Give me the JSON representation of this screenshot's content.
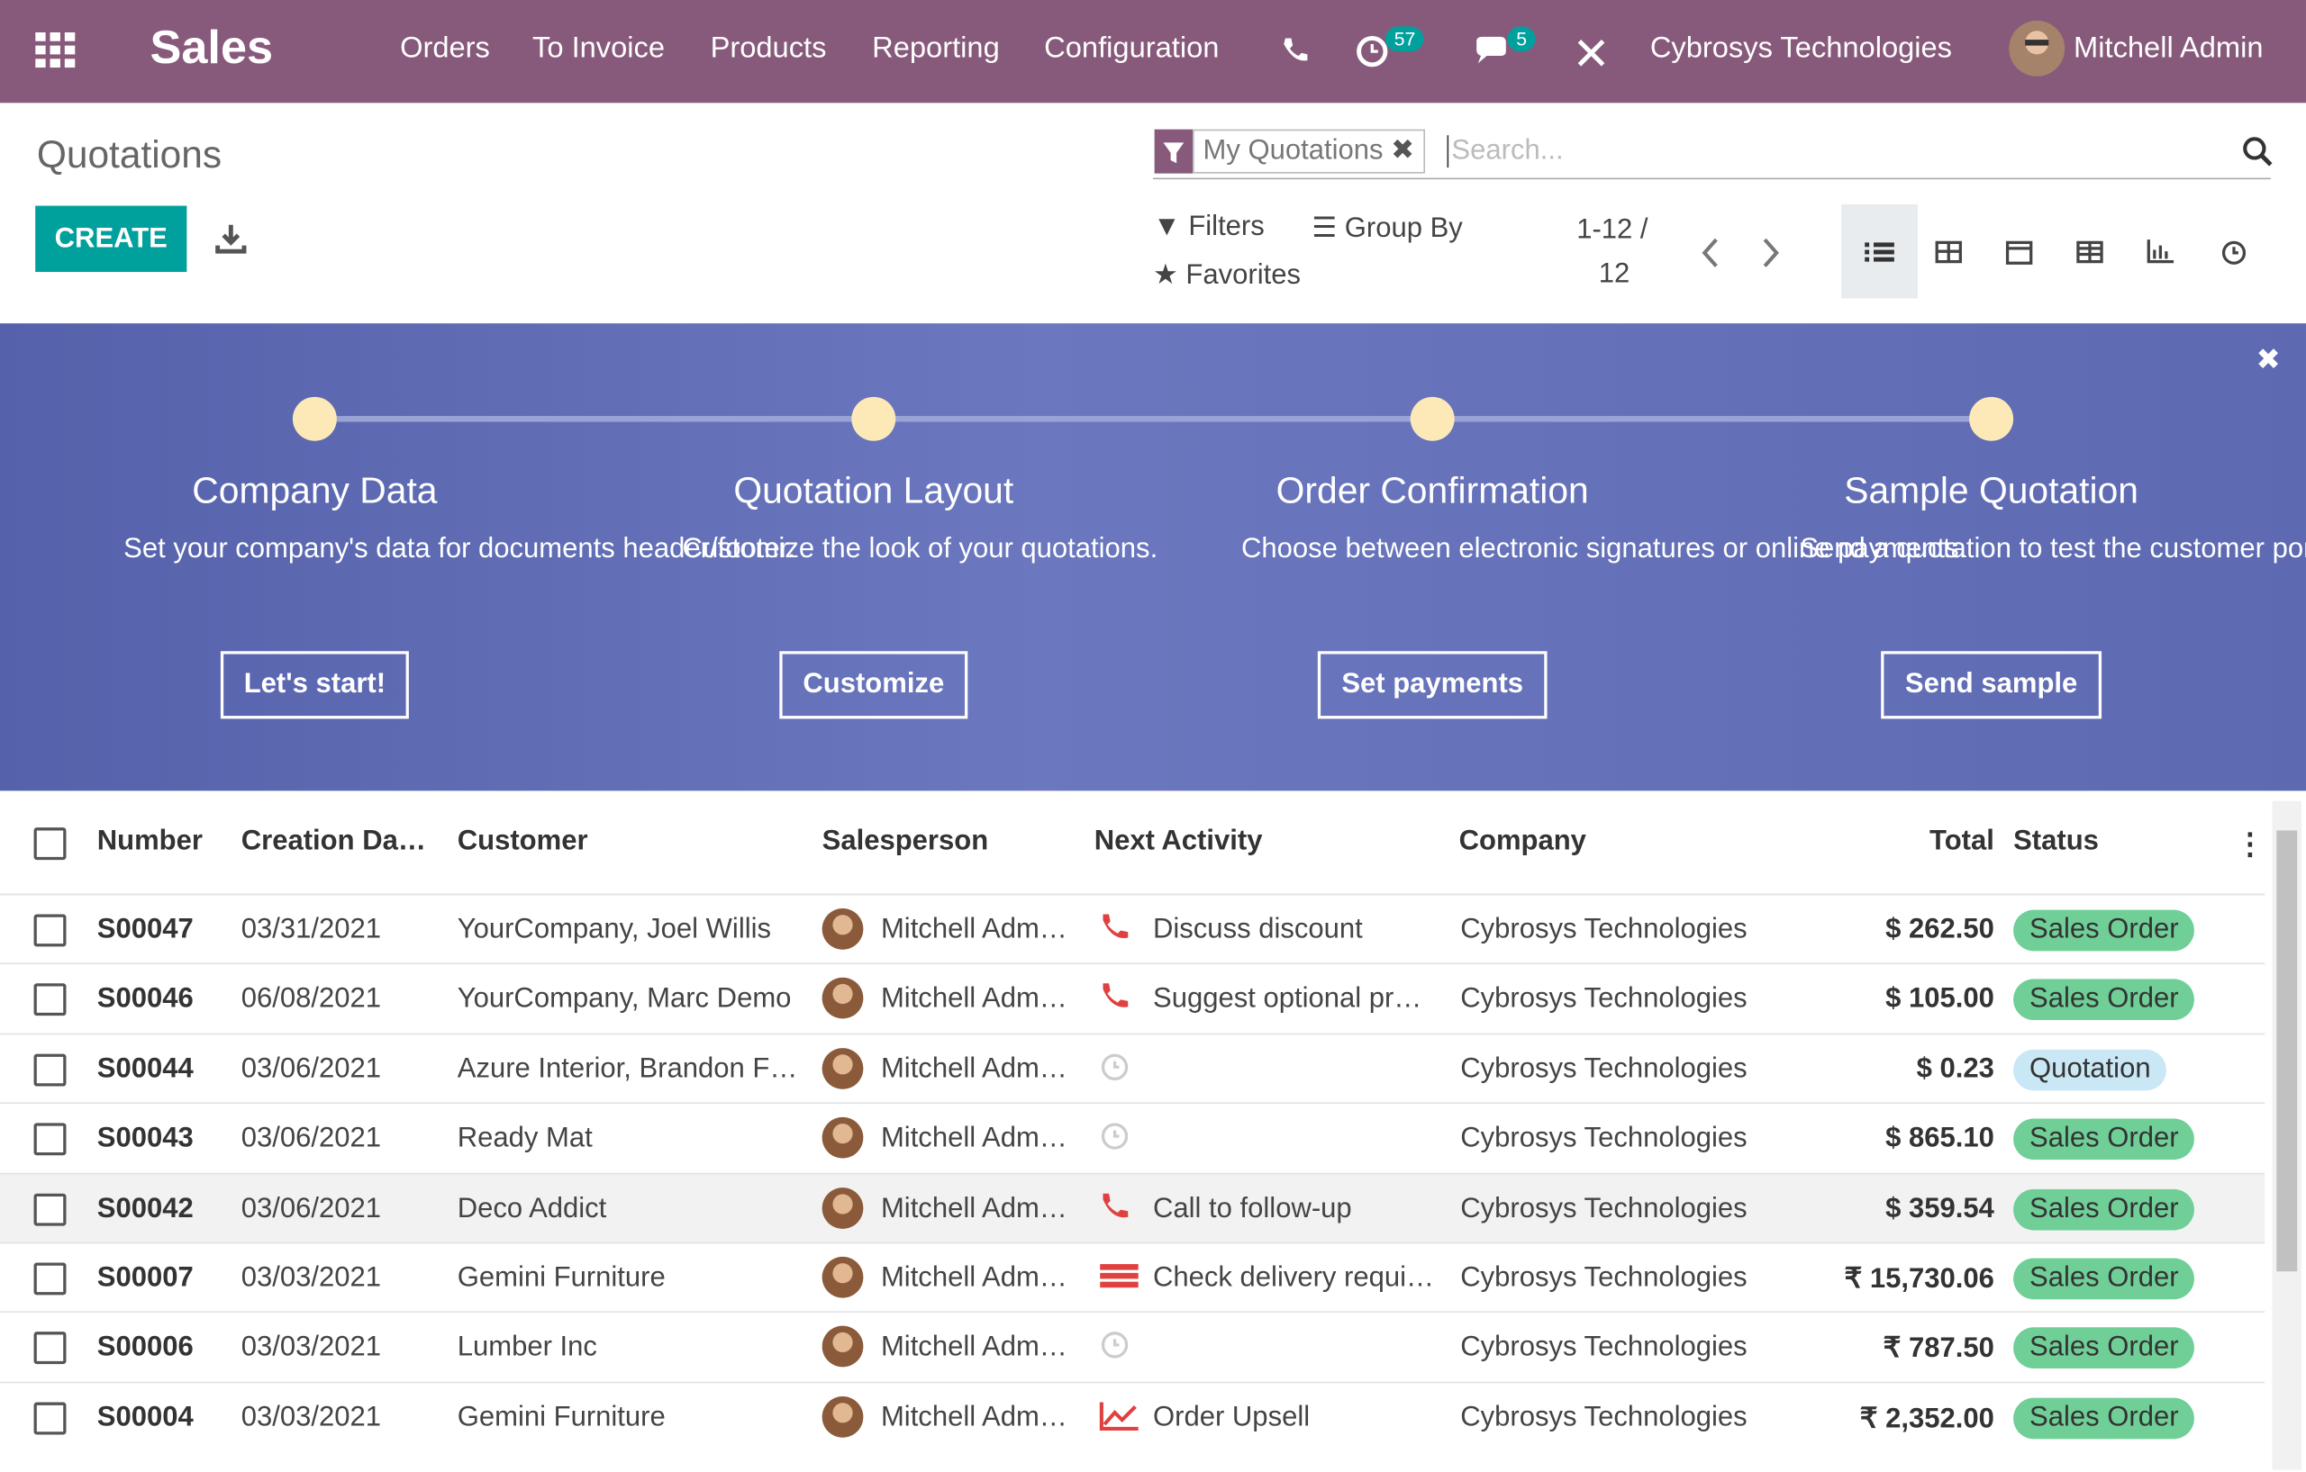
{
  "navbar": {
    "app": "Sales",
    "menu": [
      "Orders",
      "To Invoice",
      "Products",
      "Reporting",
      "Configuration"
    ],
    "activity_count": "57",
    "message_count": "5",
    "company": "Cybrosys Technologies",
    "user": "Mitchell Admin"
  },
  "control_panel": {
    "title": "Quotations",
    "create": "CREATE",
    "facet": "My Quotations",
    "search_placeholder": "Search...",
    "filters": "Filters",
    "group_by": "Group By",
    "favorites": "Favorites",
    "pager_range": "1-12 /",
    "pager_total": "12"
  },
  "banner": {
    "steps": [
      {
        "title": "Company Data",
        "text": "Set your company's data for documents header/footer.",
        "button": "Let's start!"
      },
      {
        "title": "Quotation Layout",
        "text": "Customize the look of your quotations.",
        "button": "Customize"
      },
      {
        "title": "Order Confirmation",
        "text": "Choose between electronic signatures or online payments.",
        "button": "Set payments"
      },
      {
        "title": "Sample Quotation",
        "text": "Send a quotation to test the customer portal.",
        "button": "Send sample"
      }
    ]
  },
  "table": {
    "headers": [
      "Number",
      "Creation Da…",
      "Customer",
      "Salesperson",
      "Next Activity",
      "Company",
      "Total",
      "Status"
    ],
    "rows": [
      {
        "number": "S00047",
        "date": "03/31/2021",
        "customer": "YourCompany, Joel Willis",
        "salesperson": "Mitchell Adm…",
        "activity_type": "phone",
        "activity": "Discuss discount",
        "company": "Cybrosys Technologies",
        "total": "$ 262.50",
        "status": "Sales Order",
        "status_color": "#6fcf97"
      },
      {
        "number": "S00046",
        "date": "06/08/2021",
        "customer": "YourCompany, Marc Demo",
        "salesperson": "Mitchell Adm…",
        "activity_type": "phone",
        "activity": "Suggest optional pr…",
        "company": "Cybrosys Technologies",
        "total": "$ 105.00",
        "status": "Sales Order",
        "status_color": "#6fcf97"
      },
      {
        "number": "S00044",
        "date": "03/06/2021",
        "customer": "Azure Interior, Brandon F…",
        "salesperson": "Mitchell Adm…",
        "activity_type": "clock",
        "company": "Cybrosys Technologies",
        "total": "$ 0.23",
        "status": "Quotation",
        "status_color": "#c9e7f5"
      },
      {
        "number": "S00043",
        "date": "03/06/2021",
        "customer": "Ready Mat",
        "salesperson": "Mitchell Adm…",
        "activity_type": "clock",
        "company": "Cybrosys Technologies",
        "total": "$ 865.10",
        "status": "Sales Order",
        "status_color": "#6fcf97"
      },
      {
        "number": "S00042",
        "date": "03/06/2021",
        "customer": "Deco Addict",
        "salesperson": "Mitchell Adm…",
        "activity_type": "phone",
        "activity": "Call to follow-up",
        "company": "Cybrosys Technologies",
        "total": "$ 359.54",
        "status": "Sales Order",
        "status_color": "#6fcf97"
      },
      {
        "number": "S00007",
        "date": "03/03/2021",
        "customer": "Gemini Furniture",
        "salesperson": "Mitchell Adm…",
        "activity_type": "delivery",
        "activity": "Check delivery requi…",
        "company": "Cybrosys Technologies",
        "total": "₹ 15,730.06",
        "status": "Sales Order",
        "status_color": "#6fcf97"
      },
      {
        "number": "S00006",
        "date": "03/03/2021",
        "customer": "Lumber Inc",
        "salesperson": "Mitchell Adm…",
        "activity_type": "clock",
        "company": "Cybrosys Technologies",
        "total": "₹ 787.50",
        "status": "Sales Order",
        "status_color": "#6fcf97"
      },
      {
        "number": "S00004",
        "date": "03/03/2021",
        "customer": "Gemini Furniture",
        "salesperson": "Mitchell Adm…",
        "activity_type": "upsell",
        "activity": "Order Upsell",
        "company": "Cybrosys Technologies",
        "total": "₹ 2,352.00",
        "status": "Sales Order",
        "status_color": "#6fcf97"
      }
    ]
  }
}
